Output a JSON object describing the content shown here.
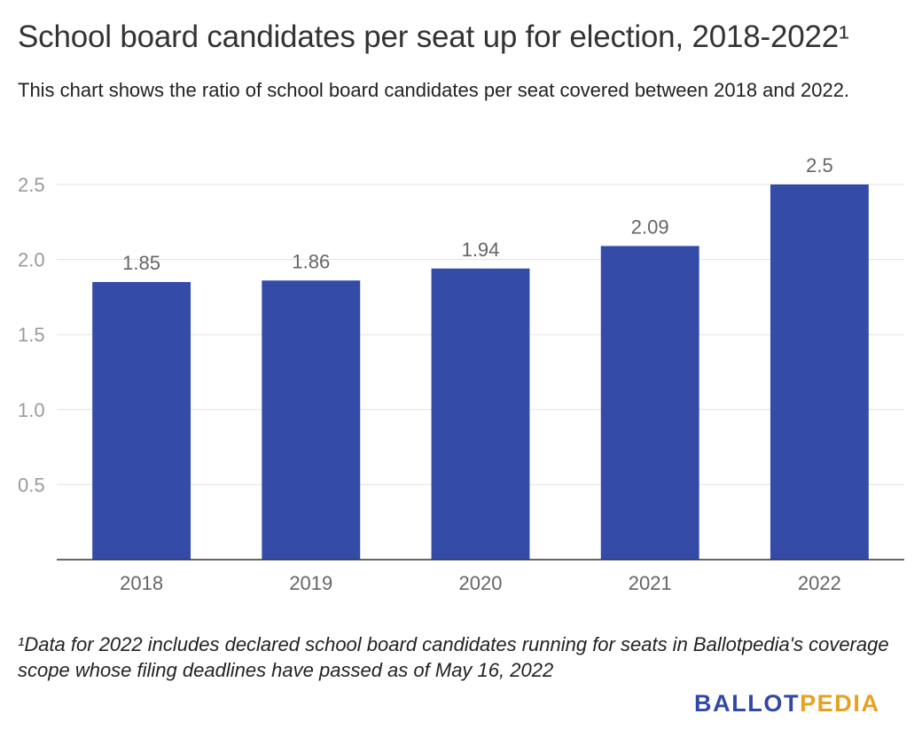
{
  "header": {
    "title": "School board candidates per seat up for election, 2018-2022¹",
    "subtitle": "This chart shows the ratio of school board candidates per seat covered between 2018 and 2022."
  },
  "chart_data": {
    "type": "bar",
    "categories": [
      "2018",
      "2019",
      "2020",
      "2021",
      "2022"
    ],
    "values": [
      1.85,
      1.86,
      1.94,
      2.09,
      2.5
    ],
    "value_labels": [
      "1.85",
      "1.86",
      "1.94",
      "2.09",
      "2.5"
    ],
    "y_ticks": [
      0.5,
      1.0,
      1.5,
      2.0,
      2.5
    ],
    "y_tick_labels": [
      "0.5",
      "1.0",
      "1.5",
      "2.0",
      "2.5"
    ],
    "ylim": [
      0,
      2.5
    ],
    "grid": true,
    "bar_color": "#344ba8",
    "xlabel": "",
    "ylabel": ""
  },
  "footnote": "¹Data for 2022 includes declared school board candidates running for seats in Ballotpedia's coverage scope whose filing deadlines have passed as of May 16, 2022",
  "logo": {
    "part1": "BALLOT",
    "part2": "PEDIA",
    "color1": "#3248a6",
    "color2": "#e8a020"
  }
}
